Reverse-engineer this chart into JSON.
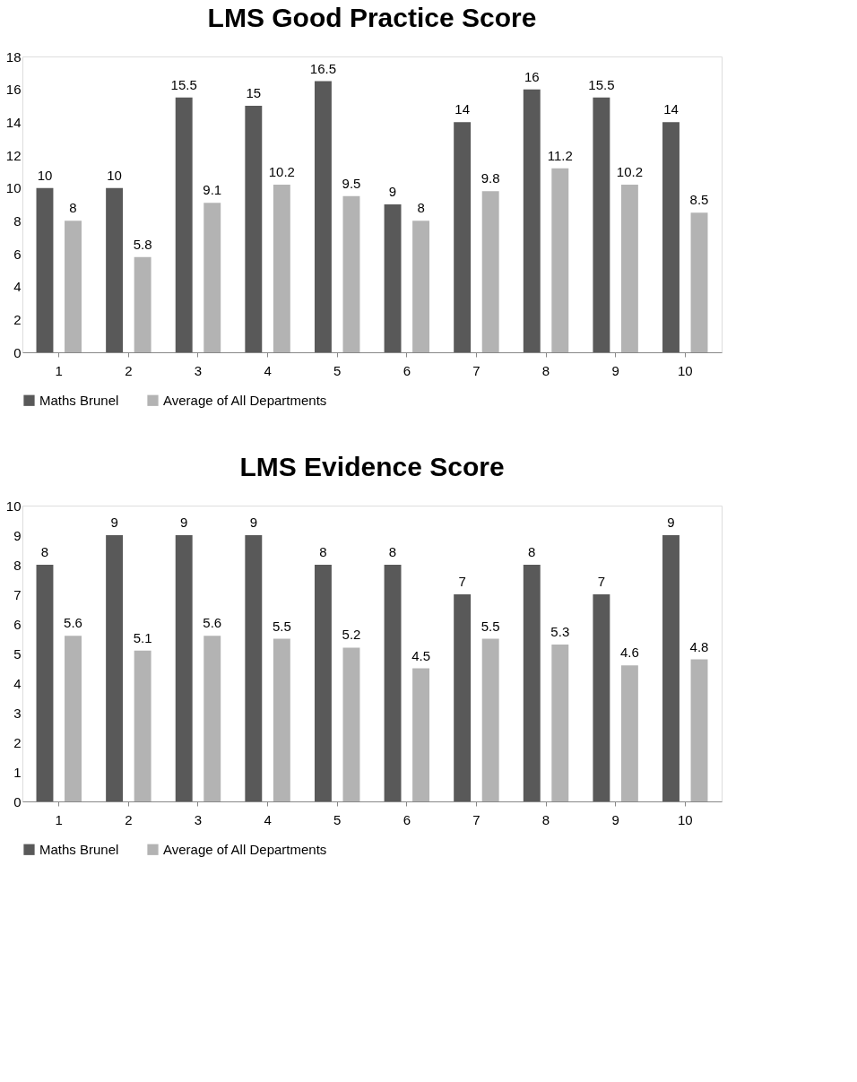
{
  "chart_data": [
    {
      "type": "bar",
      "title": "LMS Good Practice Score",
      "categories": [
        "1",
        "2",
        "3",
        "4",
        "5",
        "6",
        "7",
        "8",
        "9",
        "10"
      ],
      "series": [
        {
          "name": "Maths Brunel",
          "color": "#595959",
          "values": [
            10,
            10,
            15.5,
            15,
            16.5,
            9,
            14,
            16,
            15.5,
            14
          ]
        },
        {
          "name": "Average of All Departments",
          "color": "#b3b3b3",
          "values": [
            8,
            5.8,
            9.1,
            10.2,
            9.5,
            8,
            9.8,
            11.2,
            10.2,
            8.5
          ]
        }
      ],
      "ylim": [
        0,
        18
      ],
      "yticks": [
        0,
        2,
        4,
        6,
        8,
        10,
        12,
        14,
        16,
        18
      ],
      "data_labels": true,
      "legend": "bottom",
      "grid": false
    },
    {
      "type": "bar",
      "title": "LMS Evidence Score",
      "categories": [
        "1",
        "2",
        "3",
        "4",
        "5",
        "6",
        "7",
        "8",
        "9",
        "10"
      ],
      "series": [
        {
          "name": "Maths Brunel",
          "color": "#595959",
          "values": [
            8,
            9,
            9,
            9,
            8,
            8,
            7,
            8,
            7,
            9
          ]
        },
        {
          "name": "Average of All Departments",
          "color": "#b3b3b3",
          "values": [
            5.6,
            5.1,
            5.6,
            5.5,
            5.2,
            4.5,
            5.5,
            5.3,
            4.6,
            4.8
          ]
        }
      ],
      "ylim": [
        0,
        10
      ],
      "yticks": [
        0,
        1,
        2,
        3,
        4,
        5,
        6,
        7,
        8,
        9,
        10
      ],
      "data_labels": true,
      "legend": "bottom",
      "grid": false
    }
  ]
}
